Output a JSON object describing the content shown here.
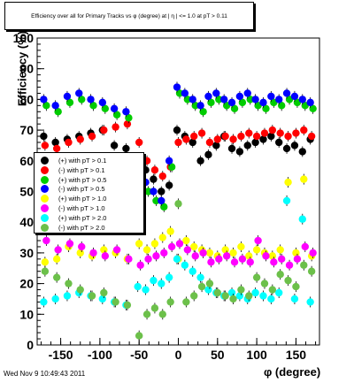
{
  "title": "Efficiency over all for Primary Tracks vs φ (degree) at |  η | <= 1.0 at pT > 0.11",
  "timestamp": "Wed Nov  9 10:49:43 2011",
  "chart_data": {
    "type": "scatter",
    "xlabel": "φ (degree)",
    "ylabel": "Efficiency (%)",
    "xlim": [
      -180,
      180
    ],
    "ylim": [
      0,
      100
    ],
    "xticks": [
      -150,
      -100,
      -50,
      0,
      50,
      100,
      150
    ],
    "yticks": [
      0,
      10,
      20,
      30,
      40,
      50,
      60,
      70,
      80,
      90,
      100
    ],
    "series": [
      {
        "name": "(+) with pT > 0.1",
        "color": "#000000",
        "x": [
          -170,
          -155,
          -140,
          -125,
          -110,
          -95,
          -80,
          -65,
          -50,
          -40,
          -30,
          -20,
          -10,
          0,
          10,
          20,
          30,
          40,
          50,
          60,
          70,
          80,
          90,
          100,
          110,
          120,
          130,
          140,
          150,
          160,
          170
        ],
        "y": [
          68,
          66,
          67,
          68,
          69,
          70,
          65,
          64,
          60,
          57,
          54,
          50,
          52,
          70,
          68,
          66,
          60,
          62,
          65,
          68,
          64,
          63,
          65,
          66,
          67,
          68,
          66,
          64,
          65,
          63,
          67
        ]
      },
      {
        "name": "(-) with pT > 0.1",
        "color": "#ff0000",
        "x": [
          -170,
          -155,
          -140,
          -125,
          -110,
          -95,
          -80,
          -65,
          -50,
          -40,
          -30,
          -20,
          -10,
          0,
          10,
          20,
          30,
          40,
          50,
          60,
          70,
          80,
          90,
          100,
          110,
          120,
          130,
          140,
          150,
          160,
          170
        ],
        "y": [
          65,
          64,
          66,
          67,
          68,
          70,
          71,
          72,
          66,
          60,
          57,
          55,
          58,
          66,
          67,
          68,
          69,
          66,
          67,
          68,
          67,
          68,
          69,
          68,
          69,
          70,
          69,
          68,
          69,
          70,
          68
        ]
      },
      {
        "name": "(+) with pT > 0.5",
        "color": "#00cc00",
        "x": [
          -170,
          -155,
          -140,
          -125,
          -110,
          -95,
          -80,
          -65,
          -50,
          -40,
          -30,
          -20,
          -10,
          0,
          10,
          20,
          30,
          40,
          50,
          60,
          70,
          80,
          90,
          100,
          110,
          120,
          130,
          140,
          150,
          160,
          170
        ],
        "y": [
          78,
          76,
          79,
          80,
          78,
          77,
          75,
          74,
          55,
          50,
          47,
          45,
          58,
          82,
          80,
          78,
          76,
          79,
          80,
          78,
          77,
          79,
          80,
          78,
          77,
          79,
          78,
          80,
          79,
          78,
          77
        ]
      },
      {
        "name": "(-) with pT > 0.5",
        "color": "#0000ff",
        "x": [
          -170,
          -155,
          -140,
          -125,
          -110,
          -95,
          -80,
          -65,
          -50,
          -40,
          -30,
          -20,
          -10,
          0,
          10,
          20,
          30,
          40,
          50,
          60,
          70,
          80,
          90,
          100,
          110,
          120,
          130,
          140,
          150,
          160,
          170
        ],
        "y": [
          80,
          78,
          81,
          82,
          80,
          79,
          77,
          76,
          58,
          53,
          50,
          47,
          60,
          84,
          82,
          80,
          78,
          81,
          82,
          80,
          79,
          81,
          82,
          80,
          79,
          81,
          80,
          82,
          81,
          80,
          79
        ]
      },
      {
        "name": "(+) with pT > 1.0",
        "color": "#ffff00",
        "x": [
          -170,
          -155,
          -140,
          -125,
          -110,
          -95,
          -80,
          -65,
          -50,
          -40,
          -30,
          -20,
          -10,
          0,
          10,
          20,
          30,
          40,
          50,
          60,
          70,
          80,
          90,
          100,
          110,
          120,
          130,
          140,
          150,
          160,
          170
        ],
        "y": [
          27,
          28,
          32,
          30,
          29,
          31,
          30,
          28,
          33,
          31,
          33,
          35,
          37,
          28,
          34,
          32,
          31,
          30,
          29,
          31,
          30,
          32,
          29,
          31,
          30,
          29,
          31,
          53,
          30,
          54,
          29
        ]
      },
      {
        "name": "(-) with pT > 1.0",
        "color": "#ff00ff",
        "x": [
          -170,
          -155,
          -140,
          -125,
          -110,
          -95,
          -80,
          -65,
          -50,
          -40,
          -30,
          -20,
          -10,
          0,
          10,
          20,
          30,
          40,
          50,
          60,
          70,
          80,
          90,
          100,
          110,
          120,
          130,
          140,
          150,
          160,
          170
        ],
        "y": [
          34,
          31,
          33,
          32,
          30,
          29,
          31,
          28,
          26,
          28,
          29,
          30,
          32,
          33,
          31,
          29,
          30,
          27,
          28,
          29,
          27,
          28,
          27,
          34,
          29,
          27,
          28,
          26,
          28,
          32,
          30
        ]
      },
      {
        "name": "(+) with pT > 2.0",
        "color": "#00ffff",
        "x": [
          -170,
          -155,
          -140,
          -125,
          -110,
          -95,
          -80,
          -65,
          -50,
          -40,
          -30,
          -20,
          -10,
          0,
          10,
          20,
          30,
          40,
          50,
          60,
          70,
          80,
          90,
          100,
          110,
          120,
          130,
          140,
          150,
          160,
          170
        ],
        "y": [
          14,
          15,
          16,
          17,
          16,
          15,
          14,
          13,
          19,
          18,
          21,
          20,
          22,
          28,
          26,
          24,
          22,
          18,
          17,
          16,
          17,
          16,
          15,
          17,
          16,
          15,
          17,
          47,
          15,
          41,
          14
        ]
      },
      {
        "name": "(-) with pT > 2.0",
        "color": "#6cc04a",
        "x": [
          -170,
          -155,
          -140,
          -125,
          -110,
          -95,
          -80,
          -65,
          -50,
          -40,
          -30,
          -20,
          -10,
          0,
          10,
          20,
          30,
          40,
          50,
          60,
          70,
          80,
          90,
          100,
          110,
          120,
          130,
          140,
          150,
          160,
          170
        ],
        "y": [
          24,
          22,
          20,
          18,
          16,
          17,
          14,
          13,
          3,
          10,
          12,
          10,
          14,
          46,
          14,
          16,
          19,
          20,
          17,
          16,
          15,
          18,
          16,
          22,
          20,
          18,
          23,
          21,
          19,
          26,
          24
        ]
      }
    ]
  }
}
